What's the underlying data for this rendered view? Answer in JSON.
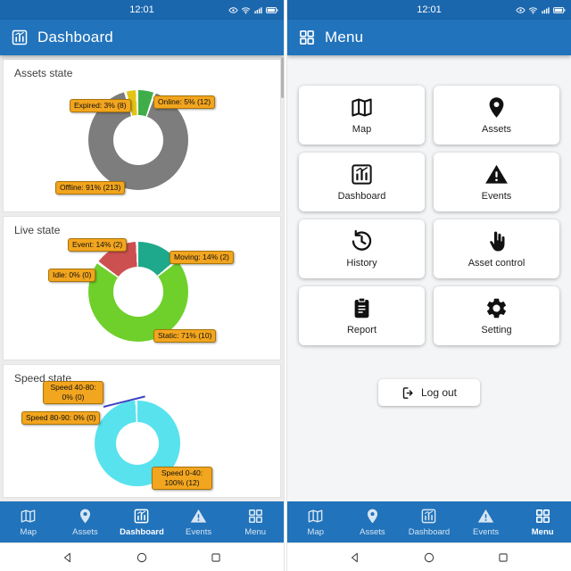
{
  "status_bar": {
    "time": "12:01",
    "icons": [
      "eye-icon",
      "wifi-icon",
      "signal-icon",
      "battery-icon"
    ]
  },
  "dashboard_screen": {
    "app_bar": {
      "title": "Dashboard",
      "icon": "dashboard-icon"
    }
  },
  "menu_screen": {
    "app_bar": {
      "title": "Menu",
      "icon": "grid-icon"
    },
    "items": [
      {
        "label": "Map",
        "icon": "map-icon"
      },
      {
        "label": "Assets",
        "icon": "pin-icon"
      },
      {
        "label": "Dashboard",
        "icon": "dashboard-icon"
      },
      {
        "label": "Events",
        "icon": "warning-icon"
      },
      {
        "label": "History",
        "icon": "history-icon"
      },
      {
        "label": "Asset control",
        "icon": "hand-icon"
      },
      {
        "label": "Report",
        "icon": "report-icon"
      },
      {
        "label": "Setting",
        "icon": "gear-icon"
      }
    ],
    "logout_label": "Log out",
    "logout_icon": "logout-icon"
  },
  "bottom_nav": {
    "items": [
      {
        "label": "Map",
        "icon": "map-icon"
      },
      {
        "label": "Assets",
        "icon": "pin-icon"
      },
      {
        "label": "Dashboard",
        "icon": "dashboard-icon"
      },
      {
        "label": "Events",
        "icon": "warning-icon"
      },
      {
        "label": "Menu",
        "icon": "grid-icon"
      }
    ],
    "active_on_dashboard_screen": "Dashboard",
    "active_on_menu_screen": "Menu"
  },
  "chart_data": [
    {
      "type": "donut",
      "title": "Assets state",
      "slices": [
        {
          "label": "Online",
          "percent": 5,
          "count": 12,
          "color": "#3fae49"
        },
        {
          "label": "Offline",
          "percent": 91,
          "count": 213,
          "color": "#7d7d7d"
        },
        {
          "label": "Expired",
          "percent": 3,
          "count": 8,
          "color": "#e4c414"
        }
      ],
      "labels": [
        "Expired: 3% (8)",
        "Online: 5% (12)",
        "Offline: 91% (213)"
      ]
    },
    {
      "type": "donut",
      "title": "Live state",
      "slices": [
        {
          "label": "Moving",
          "percent": 14,
          "count": 2,
          "color": "#1fa98c"
        },
        {
          "label": "Static",
          "percent": 71,
          "count": 10,
          "color": "#6fd02c"
        },
        {
          "label": "Event",
          "percent": 14,
          "count": 2,
          "color": "#cd5051"
        },
        {
          "label": "Idle",
          "percent": 0,
          "count": 0,
          "color": "#cccccc"
        }
      ],
      "labels": [
        "Event: 14% (2)",
        "Moving: 14% (2)",
        "Idle: 0% (0)",
        "Static: 71% (10)"
      ]
    },
    {
      "type": "donut",
      "title": "Speed state",
      "slices": [
        {
          "label": "Speed 0-40",
          "percent": 100,
          "count": 12,
          "color": "#57e2ee"
        },
        {
          "label": "Speed 40-80",
          "percent": 0,
          "count": 0,
          "color": "#cccccc"
        },
        {
          "label": "Speed 80-90",
          "percent": 0,
          "count": 0,
          "color": "#cccccc"
        }
      ],
      "labels": [
        "Speed 40-80: 0% (0)",
        "Speed 80-90: 0% (0)",
        "Speed 0-40: 100% (12)"
      ]
    }
  ],
  "android_nav": {
    "icons": [
      "back-icon",
      "home-icon",
      "recents-icon"
    ]
  },
  "colors": {
    "primary_bar": "#2173bb",
    "status_bar": "#1b67ad",
    "badge": "#f2a51e",
    "badge_border": "#a87407"
  }
}
